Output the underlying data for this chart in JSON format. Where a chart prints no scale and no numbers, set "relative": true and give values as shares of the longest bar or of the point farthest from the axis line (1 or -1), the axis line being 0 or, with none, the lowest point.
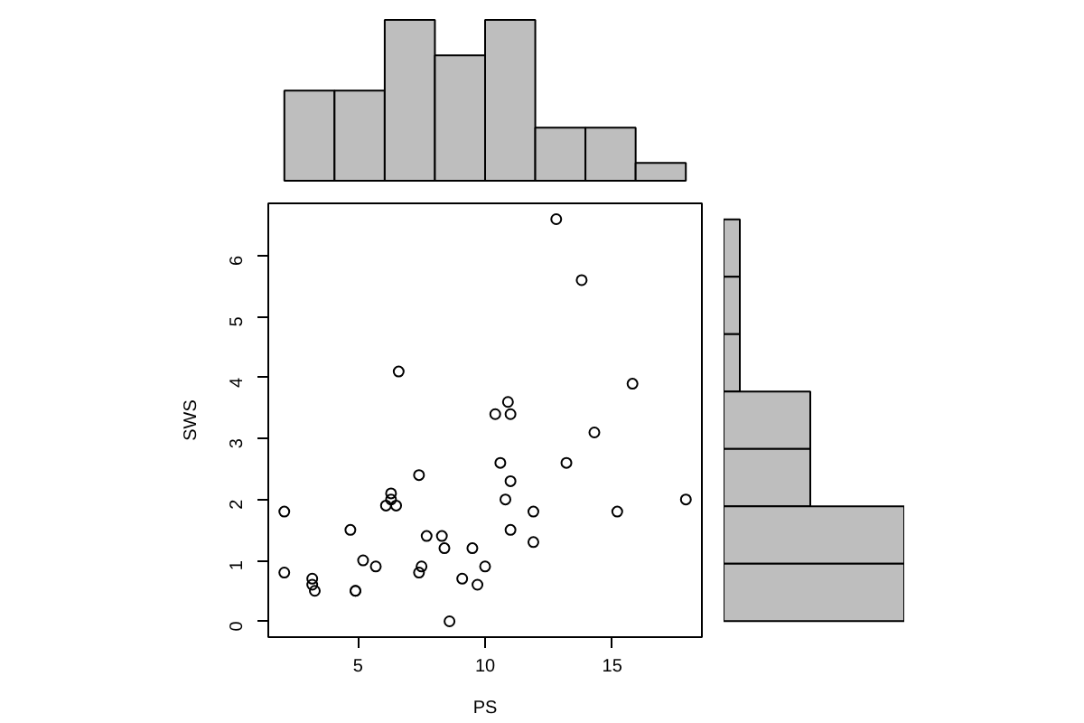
{
  "chart_data": [
    {
      "type": "bar",
      "categories": [
        null,
        null,
        null,
        null,
        null,
        null,
        null,
        null
      ],
      "values": [
        0.56,
        0.56,
        1,
        0.78,
        1,
        0.33,
        0.33,
        0.11
      ],
      "relative": true,
      "color": "#bebebe"
    },
    {
      "type": "scatter",
      "xlabel": "PS",
      "ylabel": "SWS",
      "x": [
        12.8,
        13.8,
        15.8,
        6.6,
        10.9,
        10.4,
        11.0,
        14.3,
        10.6,
        13.2,
        7.4,
        11.0,
        10.8,
        17.9,
        6.1,
        6.3,
        6.3,
        6.5,
        2.1,
        11.9,
        15.2,
        4.7,
        11.0,
        7.7,
        8.3,
        11.9,
        8.4,
        9.5,
        5.2,
        5.7,
        7.5,
        10.0,
        2.1,
        7.4,
        3.2,
        9.1,
        3.2,
        9.7,
        3.3,
        4.9,
        4.9,
        8.6
      ],
      "values": [
        6.6,
        5.6,
        3.9,
        4.1,
        3.6,
        3.4,
        3.4,
        3.1,
        2.6,
        2.6,
        2.4,
        2.3,
        2.0,
        2.0,
        1.9,
        2.1,
        2.0,
        1.9,
        1.8,
        1.8,
        1.8,
        1.5,
        1.5,
        1.4,
        1.4,
        1.3,
        1.2,
        1.2,
        1.0,
        0.9,
        0.9,
        0.9,
        0.8,
        0.8,
        0.7,
        0.7,
        0.6,
        0.6,
        0.5,
        0.5,
        0.5,
        0.0
      ],
      "color": "#000000",
      "marker": "circle",
      "xlim": [
        1.47,
        18.53
      ],
      "ylim": [
        -0.26,
        6.86
      ],
      "xticks": [
        5,
        10,
        15
      ],
      "yticks": [
        0,
        1,
        2,
        3,
        4,
        5,
        6
      ]
    },
    {
      "type": "bar",
      "orientation": "horizontal",
      "categories": [
        null,
        null,
        null,
        null,
        null,
        null,
        null
      ],
      "values": [
        0.09,
        0.09,
        0.09,
        0.48,
        0.48,
        1,
        1
      ],
      "relative": true,
      "color": "#bebebe"
    }
  ]
}
